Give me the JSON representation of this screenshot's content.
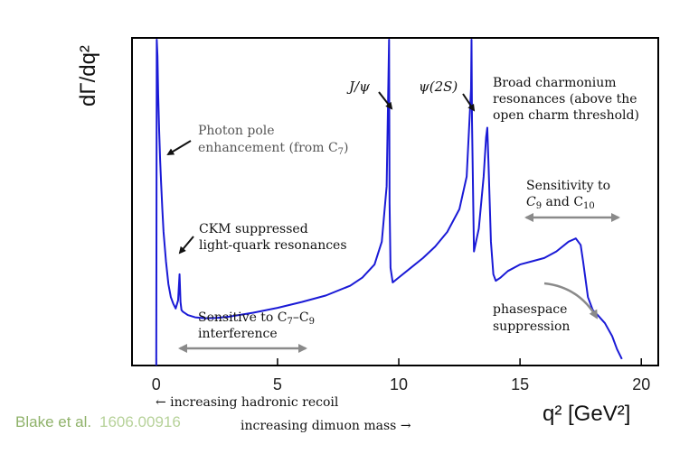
{
  "chart_data": {
    "type": "line",
    "title": "",
    "xlabel": "q² [GeV²]",
    "ylabel": "dΓ/dq²",
    "xlim": [
      -1,
      20.7
    ],
    "ylim": [
      0,
      1
    ],
    "x_ticks": [
      "0",
      "5",
      "10",
      "15",
      "20"
    ],
    "y_ticks": [],
    "grid": false,
    "line_color": "#1a1ad6",
    "series": [
      {
        "name": "",
        "x": [
          0.02,
          0.05,
          0.08,
          0.12,
          0.16,
          0.2,
          0.25,
          0.3,
          0.4,
          0.5,
          0.6,
          0.7,
          0.8,
          0.9,
          0.96,
          1.0,
          1.04,
          1.1,
          1.3,
          1.6,
          2.0,
          2.5,
          3.0,
          4.0,
          5.0,
          6.0,
          7.0,
          8.0,
          8.5,
          9.0,
          9.3,
          9.5,
          9.6,
          9.62,
          9.66,
          9.75,
          10.0,
          10.5,
          11.0,
          11.5,
          12.0,
          12.5,
          12.8,
          12.98,
          13.0,
          13.02,
          13.1,
          13.3,
          13.5,
          13.6,
          13.65,
          13.7,
          13.8,
          13.9,
          14.0,
          14.2,
          14.5,
          15.0,
          15.5,
          16.0,
          16.5,
          17.0,
          17.3,
          17.5,
          17.6,
          17.8,
          18.0,
          18.2,
          18.5,
          18.8,
          19.0,
          19.2
        ],
        "y": [
          1.0,
          0.95,
          0.83,
          0.72,
          0.63,
          0.56,
          0.48,
          0.41,
          0.32,
          0.25,
          0.21,
          0.19,
          0.175,
          0.2,
          0.28,
          0.195,
          0.17,
          0.165,
          0.155,
          0.148,
          0.145,
          0.146,
          0.15,
          0.162,
          0.177,
          0.195,
          0.215,
          0.245,
          0.27,
          0.31,
          0.38,
          0.55,
          1.0,
          0.5,
          0.3,
          0.255,
          0.27,
          0.3,
          0.33,
          0.365,
          0.41,
          0.48,
          0.58,
          0.85,
          1.0,
          0.75,
          0.35,
          0.42,
          0.58,
          0.7,
          0.73,
          0.62,
          0.38,
          0.28,
          0.26,
          0.27,
          0.29,
          0.31,
          0.32,
          0.33,
          0.35,
          0.38,
          0.39,
          0.37,
          0.32,
          0.21,
          0.17,
          0.155,
          0.13,
          0.09,
          0.05,
          0.02
        ]
      }
    ],
    "annotations": {
      "photon_1": "Photon pole",
      "photon_2": "enhancement (from C",
      "photon_sub": "7",
      "photon_end": ")",
      "ckm_1": "CKM suppressed",
      "ckm_2": "light-quark resonances",
      "jpsi": "J/ψ",
      "psi2s": "ψ(2S)",
      "broad_1": "Broad charmonium",
      "broad_2": "resonances (above the",
      "broad_3": "open charm threshold)",
      "sens_c9_1": "Sensitivity to",
      "sens_c9_a": "C",
      "sens_c9_sub_a": "9",
      "sens_c9_and": " and C",
      "sens_c9_sub_b": "10",
      "sens_int_a": "Sensitive to C",
      "sens_int_sub_a": "7",
      "sens_int_dash": "–C",
      "sens_int_sub_b": "9",
      "sens_int_2": "interference",
      "phase_1": "phasespace",
      "phase_2": "suppression",
      "hadronic": "← increasing hadronic recoil",
      "dimuon": "increasing dimuon mass →"
    },
    "credit": {
      "author": "Blake et al.",
      "arxiv": "1606.00916",
      "color_author": "#8fb26a",
      "color_arxiv": "#b7d29a"
    }
  }
}
